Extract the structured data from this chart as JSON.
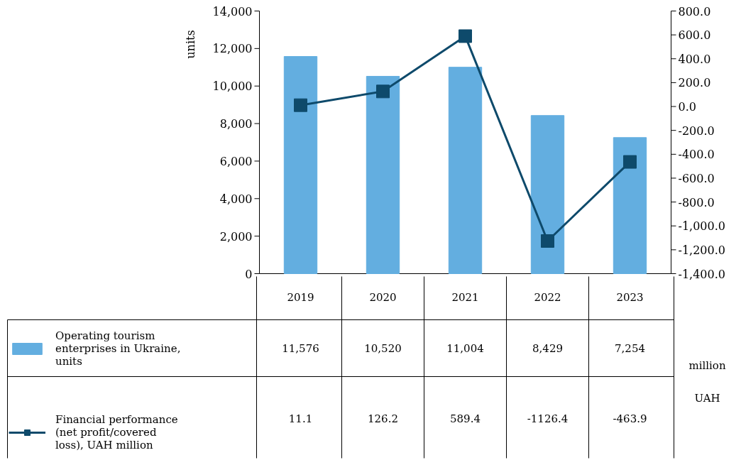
{
  "chart_data": {
    "type": "bar",
    "categories": [
      "2019",
      "2020",
      "2021",
      "2022",
      "2023"
    ],
    "ylabel": "units",
    "series": [
      {
        "name": "Operating tourism enterprises in Ukraine, units",
        "color": "#63aee0",
        "values": [
          11576,
          10520,
          11004,
          8429,
          7254
        ],
        "value_labels": [
          "11,576",
          "10,520",
          "11,004",
          "8,429",
          "7,254"
        ]
      },
      {
        "name": "Financial performance (net profit/covered loss), UAH million",
        "type": "line",
        "axis": "y2",
        "color": "#0e4a6b",
        "marker": "square",
        "values": [
          11.1,
          126.2,
          589.4,
          -1126.4,
          -463.9
        ],
        "value_labels": [
          "11.1",
          "126.2",
          "589.4",
          "-1126.4",
          "-463.9"
        ]
      }
    ],
    "ylim": [
      0,
      14000
    ],
    "yticks": [
      {
        "value": 0,
        "label": "0"
      },
      {
        "value": 2000,
        "label": "2,000"
      },
      {
        "value": 4000,
        "label": "4,000"
      },
      {
        "value": 6000,
        "label": "6,000"
      },
      {
        "value": 8000,
        "label": "8,000"
      },
      {
        "value": 10000,
        "label": "10,000"
      },
      {
        "value": 12000,
        "label": "12,000"
      },
      {
        "value": 14000,
        "label": "14,000"
      }
    ],
    "y2lim": [
      -1400,
      800
    ],
    "y2ticks": [
      {
        "value": -1400,
        "label": "-1,400.0"
      },
      {
        "value": -1200,
        "label": "-1,200.0"
      },
      {
        "value": -1000,
        "label": "-1,000.0"
      },
      {
        "value": -800,
        "label": "-800.0"
      },
      {
        "value": -600,
        "label": "-600.0"
      },
      {
        "value": -400,
        "label": "-400.0"
      },
      {
        "value": -200,
        "label": "-200.0"
      },
      {
        "value": 0,
        "label": "0.0"
      },
      {
        "value": 200,
        "label": "200.0"
      },
      {
        "value": 400,
        "label": "400.0"
      },
      {
        "value": 600,
        "label": "600.0"
      },
      {
        "value": 800,
        "label": "800.0"
      }
    ],
    "legend": "bottom",
    "annotations": [
      "million",
      "UAH"
    ]
  }
}
